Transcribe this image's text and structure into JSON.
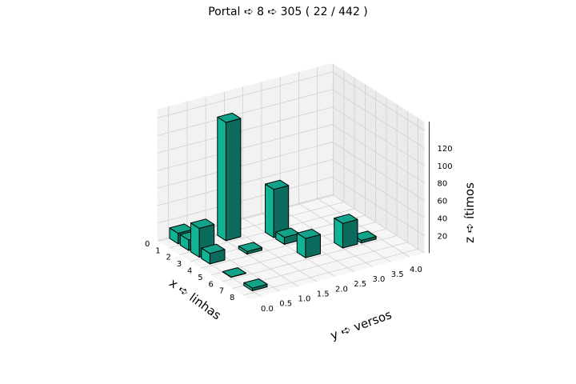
{
  "chart_data": {
    "type": "bar3d",
    "title": "Portal ➪ 8 ➪ 305 ( 22 / 442 )",
    "xlabel": "x ➪ linhas",
    "ylabel": "y ➪ versos",
    "zlabel": "z ➪ ítimos",
    "x_ticks": [
      "0",
      "1",
      "2",
      "3",
      "4",
      "5",
      "6",
      "7",
      "8"
    ],
    "y_ticks": [
      "0.0",
      "0.5",
      "1.0",
      "1.5",
      "2.0",
      "2.5",
      "3.0",
      "3.5",
      "4.0"
    ],
    "z_ticks": [
      "20",
      "40",
      "60",
      "80",
      "100",
      "120"
    ],
    "xlim": [
      0,
      8
    ],
    "ylim": [
      0,
      4
    ],
    "zlim": [
      0,
      140
    ],
    "grid": true,
    "bar_color": "#12a38a",
    "bars": [
      {
        "x": 0,
        "y": 0,
        "z": 12
      },
      {
        "x": 1,
        "y": 0,
        "z": 12
      },
      {
        "x": 1,
        "y": 1,
        "z": 135
      },
      {
        "x": 2,
        "y": 0,
        "z": 33
      },
      {
        "x": 3,
        "y": 0,
        "z": 12
      },
      {
        "x": 3,
        "y": 1,
        "z": 3
      },
      {
        "x": 2,
        "y": 2,
        "z": 55
      },
      {
        "x": 3,
        "y": 2,
        "z": 8
      },
      {
        "x": 5,
        "y": 0,
        "z": 0.5
      },
      {
        "x": 5,
        "y": 2,
        "z": 22
      },
      {
        "x": 5,
        "y": 3,
        "z": 28
      },
      {
        "x": 5,
        "y": 3.5,
        "z": 3
      },
      {
        "x": 7,
        "y": 0,
        "z": 3
      }
    ]
  }
}
